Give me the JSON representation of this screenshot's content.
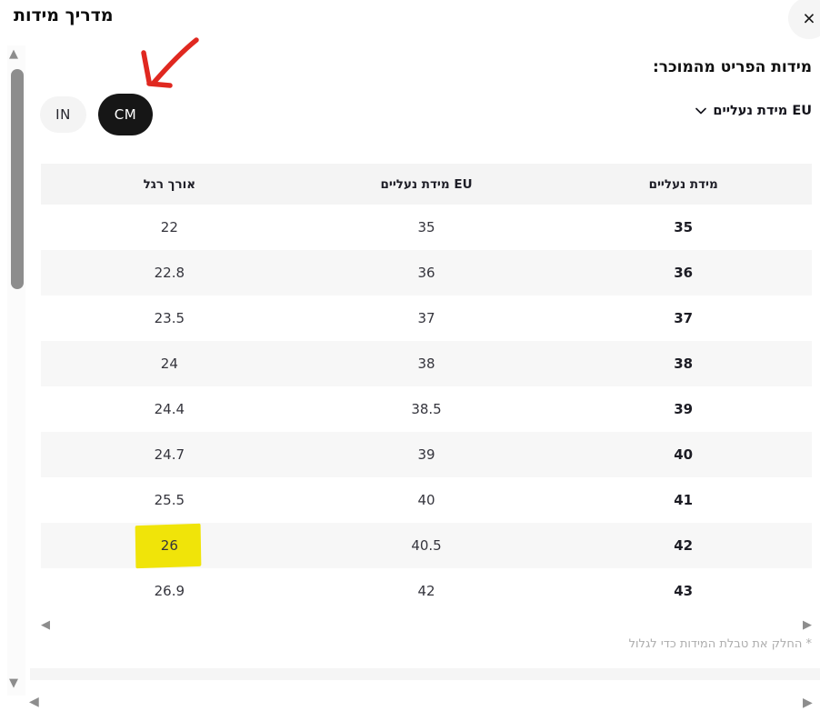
{
  "modal": {
    "title": "מדריך מידות",
    "subtitle": "מידות הפריט מהמוכר:",
    "size_system_selector": {
      "label": "EU מידת נעליים"
    },
    "footnote": "* החלק את טבלת המידות כדי לגלול"
  },
  "unit_toggle": {
    "options": [
      {
        "label": "IN",
        "selected": false
      },
      {
        "label": "CM",
        "selected": true
      }
    ]
  },
  "table": {
    "columns": [
      "מידת נעליים",
      "EU מידת נעליים",
      "אורך רגל"
    ],
    "rows": [
      {
        "size": "35",
        "eu": "35",
        "foot_length": "22",
        "highlight": false
      },
      {
        "size": "36",
        "eu": "36",
        "foot_length": "22.8",
        "highlight": false
      },
      {
        "size": "37",
        "eu": "37",
        "foot_length": "23.5",
        "highlight": false
      },
      {
        "size": "38",
        "eu": "38",
        "foot_length": "24",
        "highlight": false
      },
      {
        "size": "39",
        "eu": "38.5",
        "foot_length": "24.4",
        "highlight": false
      },
      {
        "size": "40",
        "eu": "39",
        "foot_length": "24.7",
        "highlight": false
      },
      {
        "size": "41",
        "eu": "40",
        "foot_length": "25.5",
        "highlight": false
      },
      {
        "size": "42",
        "eu": "40.5",
        "foot_length": "26",
        "highlight": true
      },
      {
        "size": "43",
        "eu": "42",
        "foot_length": "26.9",
        "highlight": false
      }
    ]
  },
  "icons": {
    "close": "×",
    "scroll_left": "◀",
    "scroll_right": "▶",
    "scroll_up": "▲",
    "scroll_down": "▼"
  },
  "colors": {
    "accent_black": "#161616",
    "highlight_yellow": "#f0e409",
    "annotation_red": "#e02820",
    "header_bg": "#f4f4f4",
    "stripe_bg": "#f7f7f7"
  }
}
